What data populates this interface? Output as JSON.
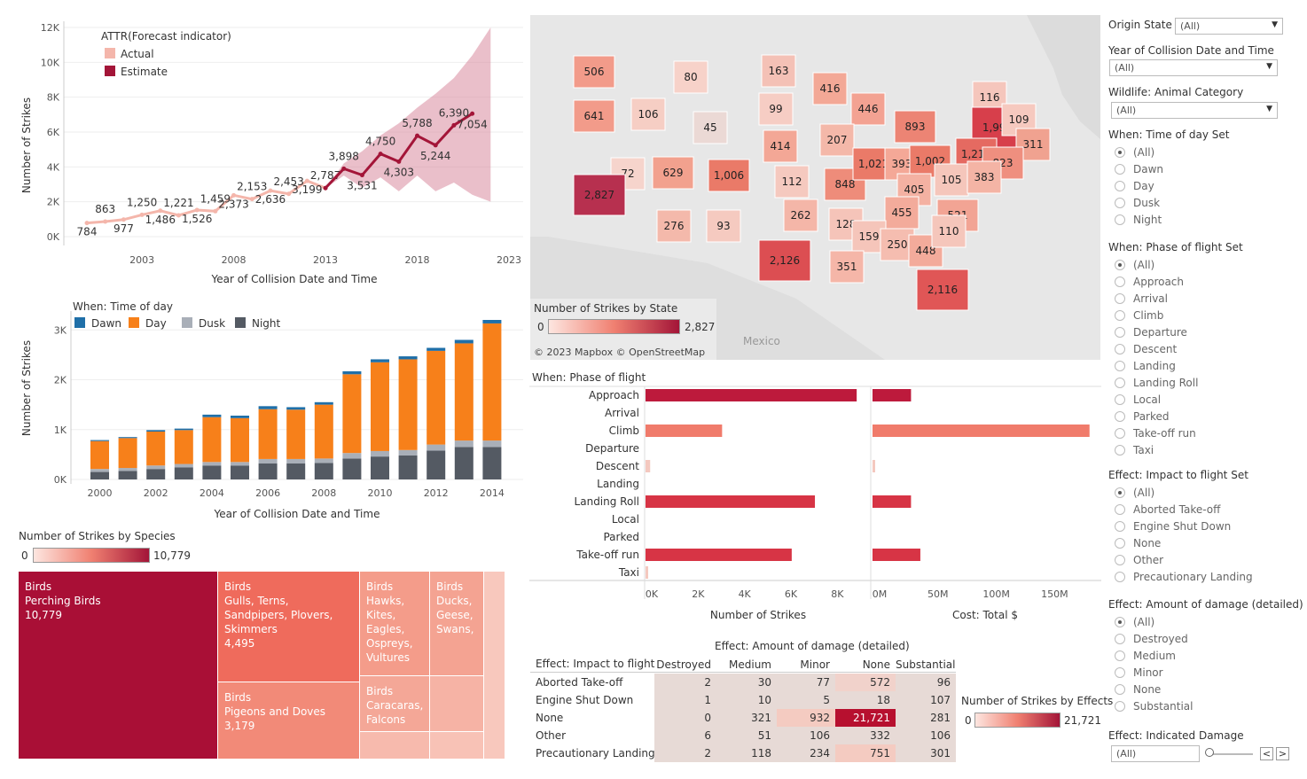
{
  "forecast": {
    "legend_title": "ATTR(Forecast indicator)",
    "legend": [
      {
        "label": "Actual",
        "color": "#f4b6ab"
      },
      {
        "label": "Estimate",
        "color": "#a31538"
      }
    ],
    "y_label": "Number of Strikes",
    "x_label": "Year of Collision Date and Time",
    "y_ticks": [
      "0K",
      "2K",
      "4K",
      "6K",
      "8K",
      "10K",
      "12K"
    ],
    "x_ticks": [
      "2003",
      "2008",
      "2013",
      "2018",
      "2023"
    ]
  },
  "timeofday": {
    "legend_title": "When: Time of day",
    "legend": [
      {
        "label": "Dawn",
        "color": "#1f6fa8"
      },
      {
        "label": "Day",
        "color": "#f7801a"
      },
      {
        "label": "Dusk",
        "color": "#a9afb8"
      },
      {
        "label": "Night",
        "color": "#545a63"
      }
    ],
    "y_label": "Number of Strikes",
    "x_label": "Year of Collision Date and Time",
    "y_ticks": [
      "0K",
      "1K",
      "2K",
      "3K"
    ],
    "x_ticks": [
      "2000",
      "2002",
      "2004",
      "2006",
      "2008",
      "2010",
      "2012",
      "2014"
    ]
  },
  "species": {
    "title": "Number of Strikes by Species",
    "scale_min": "0",
    "scale_max": "10,779",
    "tiles": [
      {
        "group": "Birds",
        "name": "Perching Birds",
        "value": "10,779"
      },
      {
        "group": "Birds",
        "name": "Gulls, Terns, Sandpipers, Plovers, Skimmers",
        "value": "4,495"
      },
      {
        "group": "Birds",
        "name": "Hawks, Kites, Eagles, Ospreys, Vultures",
        "value": ""
      },
      {
        "group": "Birds",
        "name": "Ducks, Geese, Swans,",
        "value": ""
      },
      {
        "group": "Birds",
        "name": "Pigeons and Doves",
        "value": "3,179"
      },
      {
        "group": "Birds",
        "name": "Caracaras, Falcons",
        "value": ""
      }
    ]
  },
  "map": {
    "legend_title": "Number of Strikes by State",
    "scale_min": "0",
    "scale_max": "2,827",
    "attribution": "© 2023 Mapbox © OpenStreetMap",
    "country_label": "Mexico",
    "states": [
      {
        "v": "506"
      },
      {
        "v": "641"
      },
      {
        "v": "80"
      },
      {
        "v": "106"
      },
      {
        "v": "163"
      },
      {
        "v": "99"
      },
      {
        "v": "45"
      },
      {
        "v": "416"
      },
      {
        "v": "446"
      },
      {
        "v": "116"
      },
      {
        "v": "72"
      },
      {
        "v": "629"
      },
      {
        "v": "1,006"
      },
      {
        "v": "414"
      },
      {
        "v": "207"
      },
      {
        "v": "893"
      },
      {
        "v": "1,995"
      },
      {
        "v": "109"
      },
      {
        "v": "311"
      },
      {
        "v": "2,827"
      },
      {
        "v": "112"
      },
      {
        "v": "848"
      },
      {
        "v": "1,021"
      },
      {
        "v": "393"
      },
      {
        "v": "1,002"
      },
      {
        "v": "1,215"
      },
      {
        "v": "823"
      },
      {
        "v": "405"
      },
      {
        "v": "105"
      },
      {
        "v": "383"
      },
      {
        "v": "276"
      },
      {
        "v": "93"
      },
      {
        "v": "262"
      },
      {
        "v": "128"
      },
      {
        "v": "455"
      },
      {
        "v": "521"
      },
      {
        "v": "159"
      },
      {
        "v": "250"
      },
      {
        "v": "448"
      },
      {
        "v": "110"
      },
      {
        "v": "2,126"
      },
      {
        "v": "351"
      },
      {
        "v": "2,116"
      }
    ]
  },
  "phase": {
    "header": "When: Phase of flight",
    "x_label_left": "Number of Strikes",
    "x_label_right": "Cost: Total $",
    "ticks_left": [
      "0K",
      "2K",
      "4K",
      "6K",
      "8K"
    ],
    "ticks_right": [
      "0M",
      "50M",
      "100M",
      "150M"
    ]
  },
  "damage_table": {
    "super_header": "Effect: Amount of damage (detailed)",
    "row_header": "Effect: Impact to flight",
    "columns": [
      "Destroyed",
      "Medium",
      "Minor",
      "None",
      "Substantial"
    ],
    "rows": [
      {
        "label": "Aborted Take-off",
        "values": [
          "2",
          "30",
          "77",
          "572",
          "96"
        ]
      },
      {
        "label": "Engine Shut Down",
        "values": [
          "1",
          "10",
          "5",
          "18",
          "107"
        ]
      },
      {
        "label": "None",
        "values": [
          "0",
          "321",
          "932",
          "21,721",
          "281"
        ]
      },
      {
        "label": "Other",
        "values": [
          "6",
          "51",
          "106",
          "332",
          "106"
        ]
      },
      {
        "label": "Precautionary Landing",
        "values": [
          "2",
          "118",
          "234",
          "751",
          "301"
        ]
      }
    ],
    "legend_title": "Number of Strikes by Effects",
    "scale_min": "0",
    "scale_max": "21,721"
  },
  "filters": {
    "origin_state": {
      "title": "Origin State",
      "value": "(All)"
    },
    "year": {
      "title": "Year of Collision Date and Time",
      "value": "(All)"
    },
    "wildlife": {
      "title": "Wildlife: Animal Category",
      "value": "(All)"
    },
    "time_of_day": {
      "title": "When: Time of day Set",
      "options": [
        "(All)",
        "Dawn",
        "Day",
        "Dusk",
        "Night"
      ]
    },
    "phase": {
      "title": "When: Phase of flight Set",
      "options": [
        "(All)",
        "Approach",
        "Arrival",
        "Climb",
        "Departure",
        "Descent",
        "Landing",
        "Landing Roll",
        "Local",
        "Parked",
        "Take-off run",
        "Taxi"
      ]
    },
    "impact": {
      "title": "Effect: Impact to flight Set",
      "options": [
        "(All)",
        "Aborted Take-off",
        "Engine Shut Down",
        "None",
        "Other",
        "Precautionary Landing"
      ]
    },
    "damage": {
      "title": "Effect: Amount of damage (detailed)",
      "options": [
        "(All)",
        "Destroyed",
        "Medium",
        "Minor",
        "None",
        "Substantial"
      ]
    },
    "indicated": {
      "title": "Effect: Indicated Damage",
      "value": "(All)"
    }
  },
  "chart_data": [
    {
      "type": "line",
      "title": "",
      "xlabel": "Year of Collision Date and Time",
      "ylabel": "Number of Strikes",
      "ylim": [
        0,
        12000
      ],
      "series": [
        {
          "name": "Actual",
          "x": [
            2000,
            2001,
            2002,
            2003,
            2004,
            2005,
            2006,
            2007,
            2008,
            2009,
            2010,
            2011,
            2012,
            2013
          ],
          "values": [
            784,
            863,
            977,
            1250,
            1486,
            1221,
            1526,
            1459,
            2373,
            2153,
            2636,
            2453,
            3199,
            2787
          ],
          "labels": [
            "784",
            "863",
            "977",
            "1,250",
            "1,486",
            "1,221",
            "1,526",
            "1,459",
            "2,373",
            "2,153",
            "2,636",
            "2,453",
            "3,199",
            "2,787"
          ]
        },
        {
          "name": "Estimate",
          "x": [
            2013,
            2014,
            2015,
            2016,
            2017,
            2018,
            2019,
            2020,
            2021,
            2022
          ],
          "values": [
            2787,
            3898,
            3531,
            4750,
            4303,
            5788,
            5244,
            6390,
            7054,
            7054
          ],
          "labels": [
            "",
            "3,898",
            "3,531",
            "4,750",
            "4,303",
            "5,788",
            "5,244",
            "6,390",
            "7,054",
            ""
          ]
        }
      ],
      "band": {
        "x": [
          2013,
          2014,
          2015,
          2016,
          2017,
          2018,
          2019,
          2020,
          2021,
          2022
        ],
        "upper": [
          2787,
          4200,
          4900,
          5800,
          6500,
          7400,
          8200,
          9100,
          10400,
          12000
        ],
        "lower": [
          2787,
          3500,
          2800,
          3400,
          2600,
          3500,
          2600,
          3100,
          2400,
          2000
        ]
      }
    },
    {
      "type": "bar",
      "title": "",
      "xlabel": "Year of Collision Date and Time",
      "ylabel": "Number of Strikes",
      "ylim": [
        0,
        3200
      ],
      "categories": [
        "2000",
        "2001",
        "2002",
        "2003",
        "2004",
        "2005",
        "2006",
        "2007",
        "2008",
        "2009",
        "2010",
        "2011",
        "2012",
        "2013",
        "2014"
      ],
      "series": [
        {
          "name": "Night",
          "values": [
            150,
            170,
            210,
            240,
            280,
            280,
            320,
            320,
            330,
            420,
            460,
            480,
            580,
            650,
            650
          ]
        },
        {
          "name": "Dusk",
          "values": [
            60,
            60,
            70,
            70,
            70,
            70,
            90,
            90,
            90,
            110,
            110,
            110,
            120,
            130,
            130
          ]
        },
        {
          "name": "Day",
          "values": [
            560,
            600,
            680,
            680,
            900,
            880,
            1000,
            990,
            1080,
            1580,
            1780,
            1820,
            1880,
            1950,
            2350
          ]
        },
        {
          "name": "Dawn",
          "values": [
            20,
            20,
            30,
            30,
            50,
            50,
            60,
            50,
            50,
            60,
            60,
            60,
            60,
            70,
            70
          ]
        }
      ]
    },
    {
      "type": "bar",
      "title": "",
      "xlabel": "Number of Strikes",
      "ylabel": "When: Phase of flight",
      "categories": [
        "Approach",
        "Arrival",
        "Climb",
        "Departure",
        "Descent",
        "Landing",
        "Landing Roll",
        "Local",
        "Parked",
        "Take-off run",
        "Taxi"
      ],
      "series": [
        {
          "name": "Number of Strikes",
          "values": [
            9100,
            0,
            3300,
            0,
            200,
            0,
            7300,
            0,
            0,
            6300,
            50
          ]
        },
        {
          "name": "Cost: Total $",
          "values": [
            33000000,
            0,
            186000000,
            0,
            2000000,
            0,
            33000000,
            0,
            0,
            41000000,
            0
          ]
        }
      ]
    }
  ]
}
